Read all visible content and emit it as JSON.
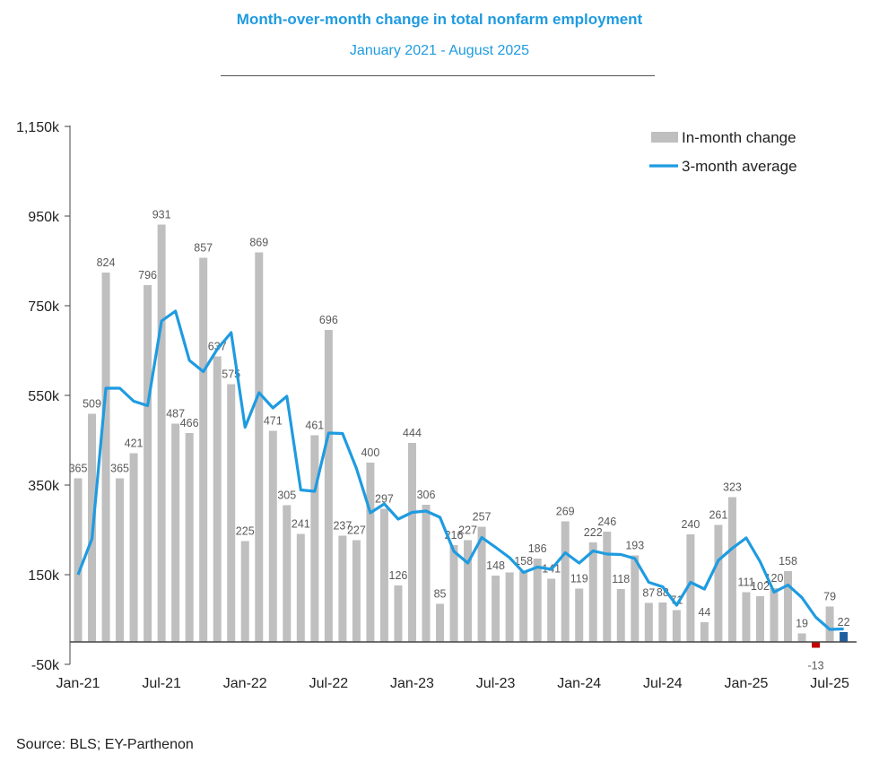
{
  "chart_data": {
    "type": "bar",
    "title": "Month-over-month change in total nonfarm employment",
    "subtitle": "January 2021 - August 2025",
    "source": "Source: BLS; EY-Parthenon",
    "ylim": [
      -50,
      1150
    ],
    "y_ticks": [
      -50,
      150,
      350,
      550,
      750,
      950,
      1150
    ],
    "y_tick_labels": [
      "-50k",
      "150k",
      "350k",
      "550k",
      "750k",
      "950k",
      "1,150k"
    ],
    "x_tick_labels": [
      "Jan-21",
      "Jul-21",
      "Jan-22",
      "Jul-22",
      "Jan-23",
      "Jul-23",
      "Jan-24",
      "Jul-24",
      "Jan-25",
      "Jul-25"
    ],
    "legend_position": "top-right",
    "grid": false,
    "colors": {
      "bar": "#bfbfbf",
      "line": "#1f9be0",
      "negative": "#c00000",
      "latest": "#1f5f9e"
    },
    "series": [
      {
        "name": "In-month change",
        "type": "bar",
        "values": [
          365,
          509,
          824,
          365,
          421,
          796,
          931,
          487,
          466,
          857,
          637,
          575,
          225,
          869,
          471,
          305,
          241,
          461,
          696,
          237,
          227,
          400,
          297,
          126,
          444,
          306,
          85,
          216,
          227,
          257,
          148,
          155,
          158,
          186,
          141,
          269,
          119,
          222,
          246,
          118,
          193,
          87,
          88,
          71,
          240,
          44,
          261,
          323,
          111,
          102,
          120,
          158,
          19,
          -13,
          79,
          22
        ],
        "labels": [
          "365",
          "509",
          "824",
          "365",
          "421",
          "796",
          "931",
          "487",
          "466",
          "857",
          "637",
          "575",
          "225",
          "869",
          "471",
          "305",
          "241",
          "461",
          "696",
          "237",
          "227",
          "400",
          "297",
          "126",
          "444",
          "306",
          "85",
          "216",
          "227",
          "257",
          "148",
          "",
          "158",
          "186",
          "141",
          "269",
          "119",
          "222",
          "246",
          "118",
          "193",
          "87",
          "88",
          "71",
          "240",
          "44",
          "261",
          "323",
          "111",
          "102",
          "120",
          "158",
          "19",
          "-13",
          "79",
          "22"
        ]
      },
      {
        "name": "3-month average",
        "type": "line",
        "values": [
          150,
          230,
          566,
          566,
          537,
          527,
          716,
          738,
          628,
          603,
          653,
          690,
          479,
          556,
          522,
          548,
          339,
          336,
          466,
          465,
          387,
          288,
          308,
          274,
          289,
          292,
          278,
          202,
          176,
          233,
          211,
          188,
          155,
          167,
          162,
          199,
          176,
          203,
          196,
          195,
          186,
          133,
          123,
          82,
          133,
          118,
          182,
          209,
          232,
          179,
          111,
          127,
          99,
          55,
          28,
          29
        ]
      }
    ]
  }
}
